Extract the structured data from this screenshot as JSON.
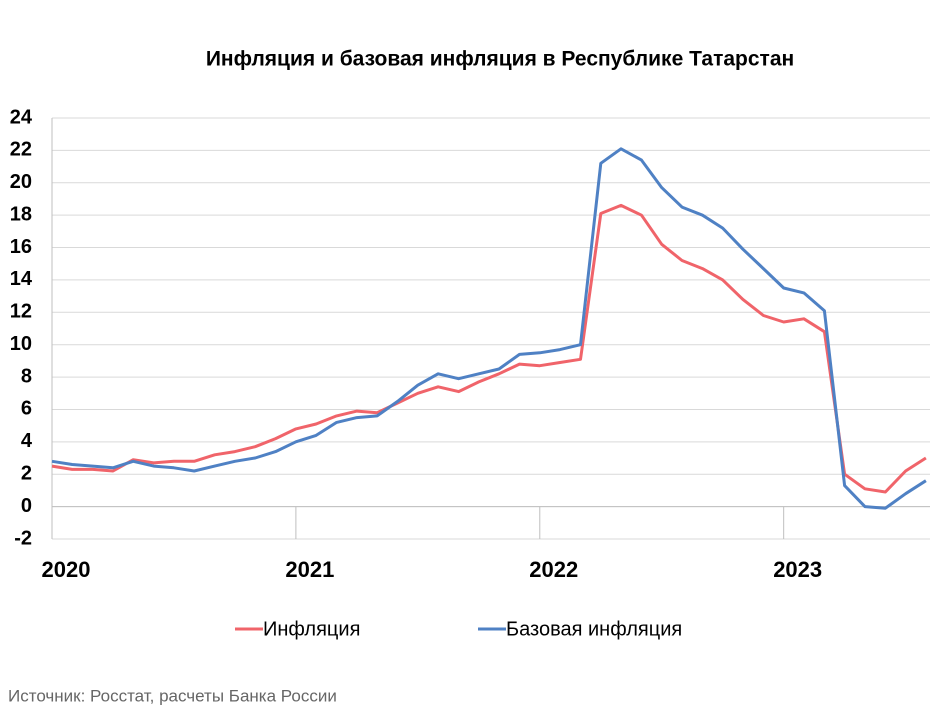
{
  "chart_data": {
    "type": "line",
    "title": "Инфляция и базовая инфляция в Республике Татарстан",
    "source": "Источник: Росстат, расчеты Банка России",
    "x": [
      2020,
      2020.083,
      2020.167,
      2020.25,
      2020.333,
      2020.417,
      2020.5,
      2020.583,
      2020.667,
      2020.75,
      2020.833,
      2020.917,
      2021,
      2021.083,
      2021.167,
      2021.25,
      2021.333,
      2021.417,
      2021.5,
      2021.583,
      2021.667,
      2021.75,
      2021.833,
      2021.917,
      2022,
      2022.083,
      2022.167,
      2022.25,
      2022.333,
      2022.417,
      2022.5,
      2022.583,
      2022.667,
      2022.75,
      2022.833,
      2022.917,
      2023,
      2023.083,
      2023.167,
      2023.25,
      2023.333,
      2023.417,
      2023.5,
      2023.583
    ],
    "series": [
      {
        "name": "Инфляция",
        "color": "#f0646a",
        "values": [
          2.5,
          2.3,
          2.3,
          2.2,
          2.9,
          2.7,
          2.8,
          2.8,
          3.2,
          3.4,
          3.7,
          4.2,
          4.8,
          5.1,
          5.6,
          5.9,
          5.8,
          6.4,
          7.0,
          7.4,
          7.1,
          7.7,
          8.2,
          8.8,
          8.7,
          8.9,
          9.1,
          18.1,
          18.6,
          18.0,
          16.2,
          15.2,
          14.7,
          14.0,
          12.8,
          11.8,
          11.4,
          11.6,
          10.8,
          2.0,
          1.1,
          0.9,
          2.2,
          3.0
        ]
      },
      {
        "name": "Базовая инфляция",
        "color": "#4f81c4",
        "values": [
          2.8,
          2.6,
          2.5,
          2.4,
          2.8,
          2.5,
          2.4,
          2.2,
          2.5,
          2.8,
          3.0,
          3.4,
          4.0,
          4.4,
          5.2,
          5.5,
          5.6,
          6.5,
          7.5,
          8.2,
          7.9,
          8.2,
          8.5,
          9.4,
          9.5,
          9.7,
          10.0,
          21.2,
          22.1,
          21.4,
          19.7,
          18.5,
          18.0,
          17.2,
          15.9,
          14.7,
          13.5,
          13.2,
          12.1,
          1.3,
          0.0,
          -0.1,
          0.8,
          1.6
        ]
      }
    ],
    "xlim": [
      2020,
      2023.6
    ],
    "xticks": [
      2020,
      2021,
      2022,
      2023
    ],
    "ylim": [
      -2,
      24
    ],
    "yticks": [
      -2,
      0,
      2,
      4,
      6,
      8,
      10,
      12,
      14,
      16,
      18,
      20,
      22,
      24
    ],
    "grid": true,
    "legend": "bottom"
  }
}
